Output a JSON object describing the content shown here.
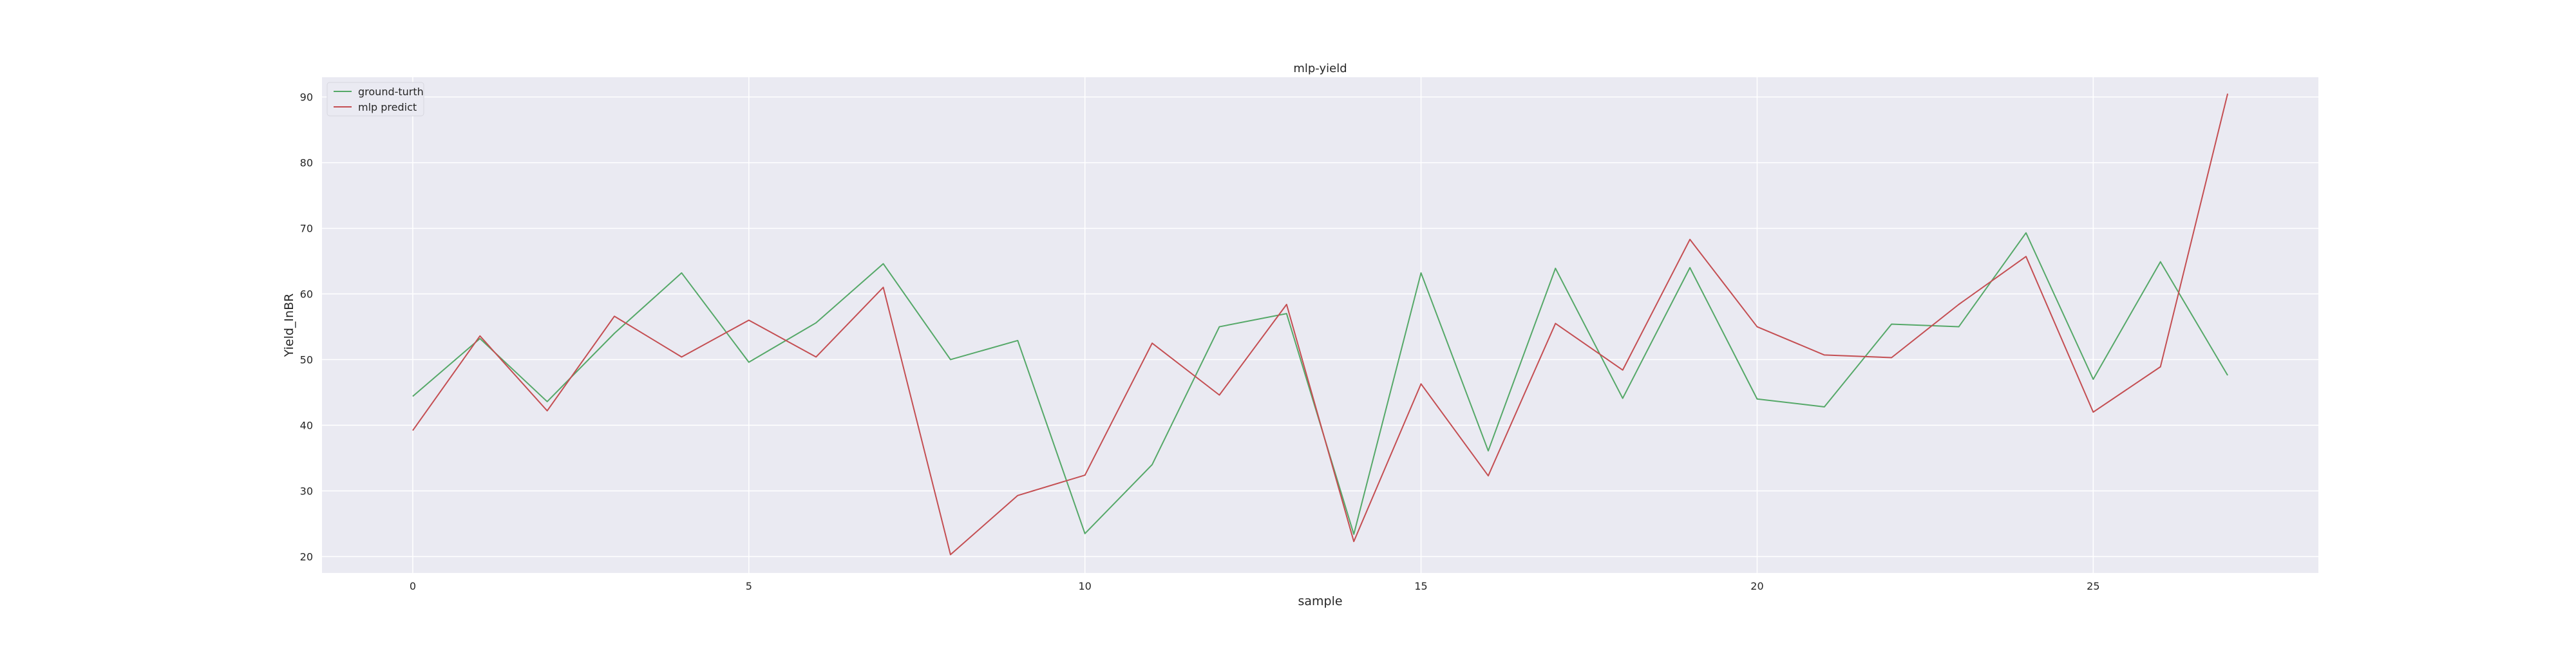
{
  "chart_data": {
    "type": "line",
    "title": "mlp-yield",
    "xlabel": "sample",
    "ylabel": "Yield_InBR",
    "xlim": [
      -1.35,
      28.35
    ],
    "ylim": [
      17.5,
      93.0
    ],
    "xticks": [
      0,
      5,
      10,
      15,
      20,
      25
    ],
    "yticks": [
      20,
      30,
      40,
      50,
      60,
      70,
      80,
      90
    ],
    "grid": true,
    "legend_position": "top-left",
    "x": [
      0,
      1,
      2,
      3,
      4,
      5,
      6,
      7,
      8,
      9,
      10,
      11,
      12,
      13,
      14,
      15,
      16,
      17,
      18,
      19,
      20,
      21,
      22,
      23,
      24,
      25,
      26,
      27
    ],
    "series": [
      {
        "name": "ground-turth",
        "color": "#55a868",
        "values": [
          44.4,
          53.2,
          43.6,
          54.0,
          63.2,
          49.6,
          55.6,
          64.6,
          50.0,
          52.9,
          23.5,
          34.0,
          55.0,
          57.0,
          23.4,
          63.2,
          36.1,
          63.9,
          44.1,
          64.0,
          44.0,
          42.8,
          55.4,
          55.0,
          69.3,
          47.0,
          64.9,
          47.6
        ]
      },
      {
        "name": "mlp predict",
        "color": "#c44e52",
        "values": [
          39.2,
          53.6,
          42.2,
          56.6,
          50.4,
          56.0,
          50.4,
          61.0,
          20.3,
          29.3,
          32.4,
          52.5,
          44.6,
          58.4,
          22.3,
          46.3,
          32.3,
          55.5,
          48.4,
          68.3,
          55.0,
          50.7,
          50.3,
          58.4,
          65.7,
          42.0,
          48.9,
          90.5
        ]
      }
    ]
  }
}
